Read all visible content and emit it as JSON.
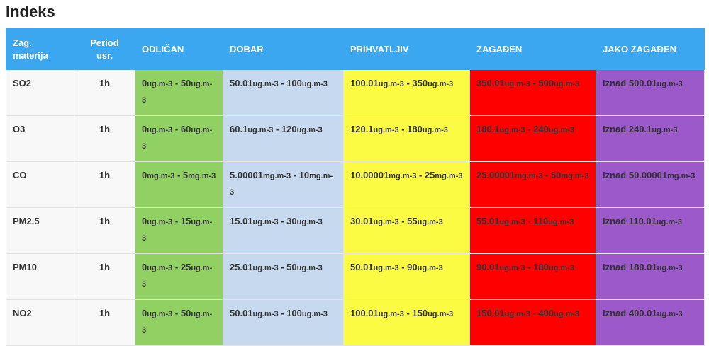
{
  "title": "Indeks",
  "headers": {
    "pollutant": "Zag. materija",
    "period": "Period usr.",
    "levels": [
      "ODLIČAN",
      "DOBAR",
      "PRIHVATLJIV",
      "ZAGAĐEN",
      "JAKO ZAGAĐEN"
    ]
  },
  "rows": [
    {
      "name": "SO2",
      "period": "1h",
      "cells": [
        {
          "parts": [
            [
              "0",
              "ug.m-3"
            ],
            [
              " - 50",
              "ug.m-3"
            ]
          ]
        },
        {
          "parts": [
            [
              "50.01",
              "ug.m-3"
            ],
            [
              " - 100",
              "ug.m-3"
            ]
          ]
        },
        {
          "parts": [
            [
              "100.01",
              "ug.m-3"
            ],
            [
              " - 350",
              "ug.m-3"
            ]
          ]
        },
        {
          "parts": [
            [
              "350.01",
              "ug.m-3"
            ],
            [
              " - 500",
              "ug.m-3"
            ]
          ]
        },
        {
          "parts": [
            [
              "Iznad 500.01",
              "ug.m-3"
            ]
          ]
        }
      ]
    },
    {
      "name": "O3",
      "period": "1h",
      "cells": [
        {
          "parts": [
            [
              "0",
              "ug.m-3"
            ],
            [
              " - 60",
              "ug.m-3"
            ]
          ]
        },
        {
          "parts": [
            [
              "60.1",
              "ug.m-3"
            ],
            [
              " - 120",
              "ug.m-3"
            ]
          ]
        },
        {
          "parts": [
            [
              "120.1",
              "ug.m-3"
            ],
            [
              " - 180",
              "ug.m-3"
            ]
          ]
        },
        {
          "parts": [
            [
              "180.1",
              "ug.m-3"
            ],
            [
              " - 240",
              "ug.m-3"
            ]
          ]
        },
        {
          "parts": [
            [
              "Iznad 240.1",
              "ug.m-3"
            ]
          ]
        }
      ]
    },
    {
      "name": "CO",
      "period": "1h",
      "cells": [
        {
          "parts": [
            [
              "0",
              "mg.m-3"
            ],
            [
              " - 5",
              "mg.m-3"
            ]
          ]
        },
        {
          "parts": [
            [
              "5.00001",
              "mg.m-3"
            ],
            [
              " - 10",
              "mg.m-3"
            ]
          ]
        },
        {
          "parts": [
            [
              "10.00001",
              "mg.m-3"
            ],
            [
              " - 25",
              "mg.m-3"
            ]
          ]
        },
        {
          "parts": [
            [
              "25.00001",
              "mg.m-3"
            ],
            [
              " - 50",
              "mg.m-3"
            ]
          ]
        },
        {
          "parts": [
            [
              "Iznad 50.00001",
              "mg.m-3"
            ]
          ]
        }
      ]
    },
    {
      "name": "PM2.5",
      "period": "1h",
      "cells": [
        {
          "parts": [
            [
              "0",
              "ug.m-3"
            ],
            [
              " - 15",
              "ug.m-3"
            ]
          ]
        },
        {
          "parts": [
            [
              "15.01",
              "ug.m-3"
            ],
            [
              " - 30",
              "ug.m-3"
            ]
          ]
        },
        {
          "parts": [
            [
              "30.01",
              "ug.m-3"
            ],
            [
              " - 55",
              "ug.m-3"
            ]
          ]
        },
        {
          "parts": [
            [
              "55.01",
              "ug.m-3"
            ],
            [
              " - 110",
              "ug.m-3"
            ]
          ]
        },
        {
          "parts": [
            [
              "Iznad 110.01",
              "ug.m-3"
            ]
          ]
        }
      ]
    },
    {
      "name": "PM10",
      "period": "1h",
      "cells": [
        {
          "parts": [
            [
              "0",
              "ug.m-3"
            ],
            [
              " - 25",
              "ug.m-3"
            ]
          ]
        },
        {
          "parts": [
            [
              "25.01",
              "ug.m-3"
            ],
            [
              " - 50",
              "ug.m-3"
            ]
          ]
        },
        {
          "parts": [
            [
              "50.01",
              "ug.m-3"
            ],
            [
              " - 90",
              "ug.m-3"
            ]
          ]
        },
        {
          "parts": [
            [
              "90.01",
              "ug.m-3"
            ],
            [
              " - 180",
              "ug.m-3"
            ]
          ]
        },
        {
          "parts": [
            [
              "Iznad 180.01",
              "ug.m-3"
            ]
          ]
        }
      ]
    },
    {
      "name": "NO2",
      "period": "1h",
      "cells": [
        {
          "parts": [
            [
              "0",
              "ug.m-3"
            ],
            [
              " - 50",
              "ug.m-3"
            ]
          ]
        },
        {
          "parts": [
            [
              "50.01",
              "ug.m-3"
            ],
            [
              " - 100",
              "ug.m-3"
            ]
          ]
        },
        {
          "parts": [
            [
              "100.01",
              "ug.m-3"
            ],
            [
              " - 150",
              "ug.m-3"
            ]
          ]
        },
        {
          "parts": [
            [
              "150.01",
              "ug.m-3"
            ],
            [
              " - 400",
              "ug.m-3"
            ]
          ]
        },
        {
          "parts": [
            [
              "Iznad 400.01",
              "ug.m-3"
            ]
          ]
        }
      ]
    }
  ],
  "colors": {
    "header": "#3aa7f0",
    "levels": [
      "#91d163",
      "#c6d9ef",
      "#fbfb44",
      "#ff0000",
      "#9b59c9"
    ]
  }
}
